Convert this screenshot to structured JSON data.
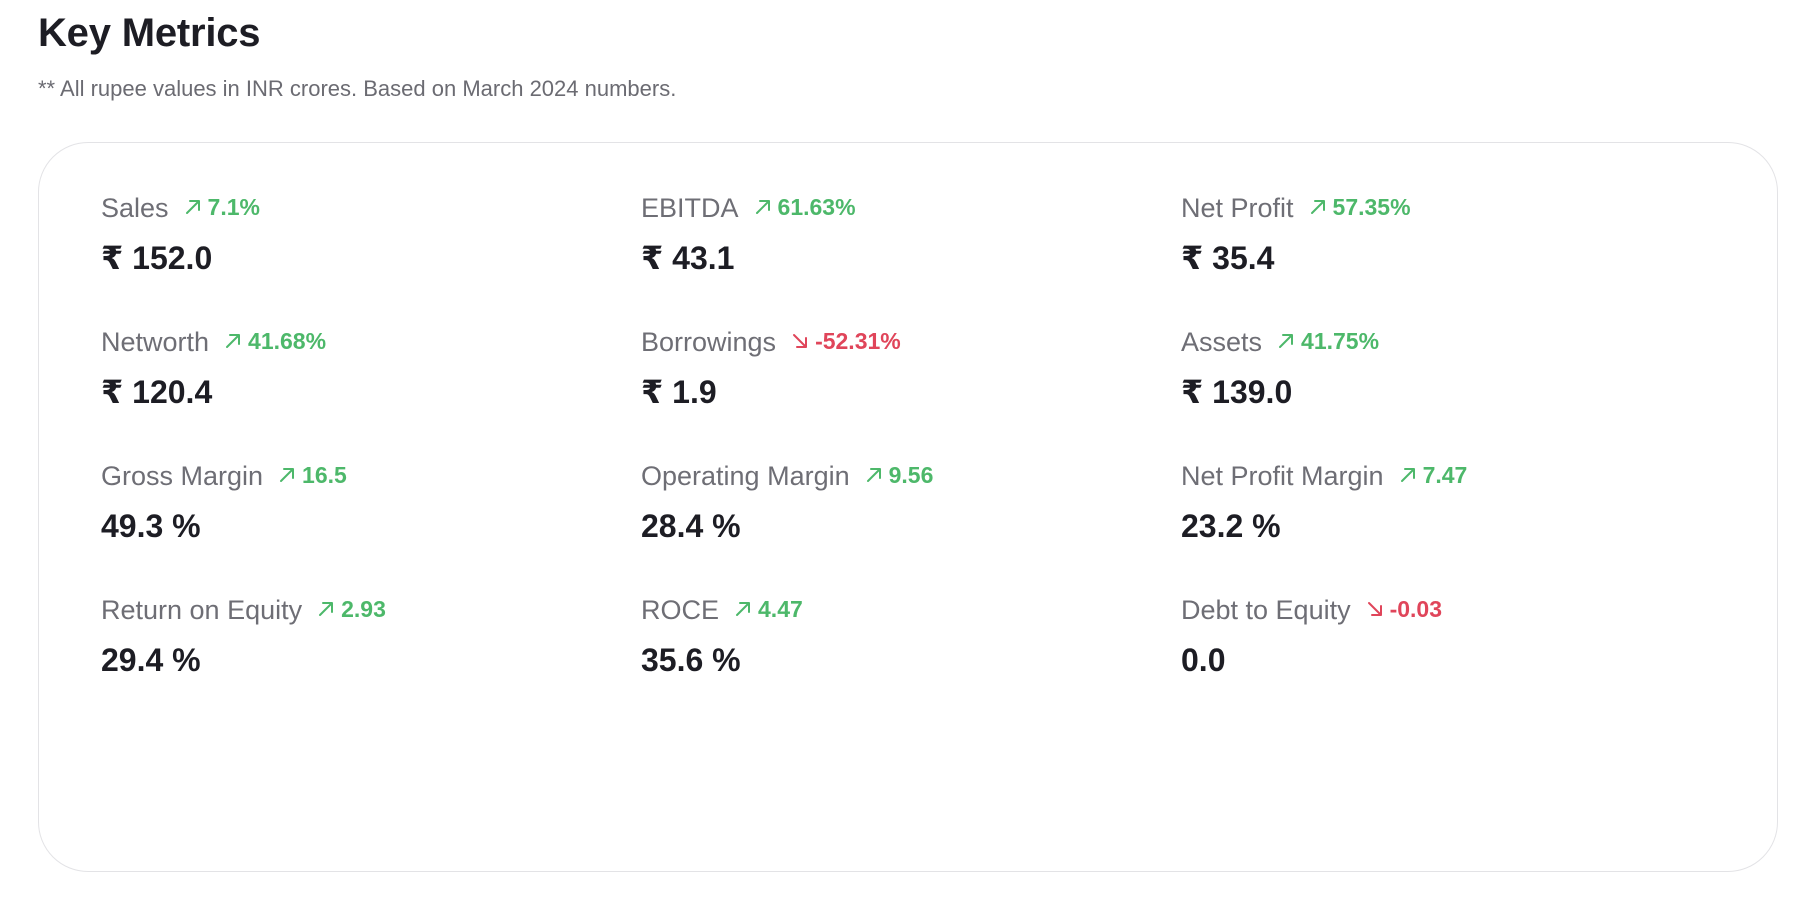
{
  "header": {
    "title": "Key Metrics",
    "subtitle": "** All rupee values in INR crores. Based on March 2024 numbers."
  },
  "colors": {
    "up": "#4db86a",
    "down": "#e0455a"
  },
  "metrics": [
    {
      "label": "Sales",
      "change": "7.1%",
      "direction": "up",
      "value": "₹ 152.0"
    },
    {
      "label": "EBITDA",
      "change": "61.63%",
      "direction": "up",
      "value": "₹ 43.1"
    },
    {
      "label": "Net Profit",
      "change": "57.35%",
      "direction": "up",
      "value": "₹ 35.4"
    },
    {
      "label": "Networth",
      "change": "41.68%",
      "direction": "up",
      "value": "₹ 120.4"
    },
    {
      "label": "Borrowings",
      "change": "-52.31%",
      "direction": "down",
      "value": "₹ 1.9"
    },
    {
      "label": "Assets",
      "change": "41.75%",
      "direction": "up",
      "value": "₹ 139.0"
    },
    {
      "label": "Gross Margin",
      "change": "16.5",
      "direction": "up",
      "value": "49.3 %"
    },
    {
      "label": "Operating Margin",
      "change": "9.56",
      "direction": "up",
      "value": "28.4 %"
    },
    {
      "label": "Net Profit Margin",
      "change": "7.47",
      "direction": "up",
      "value": "23.2 %"
    },
    {
      "label": "Return on Equity",
      "change": "2.93",
      "direction": "up",
      "value": "29.4 %"
    },
    {
      "label": "ROCE",
      "change": "4.47",
      "direction": "up",
      "value": "35.6 %"
    },
    {
      "label": "Debt to Equity",
      "change": "-0.03",
      "direction": "down",
      "value": "0.0"
    }
  ]
}
